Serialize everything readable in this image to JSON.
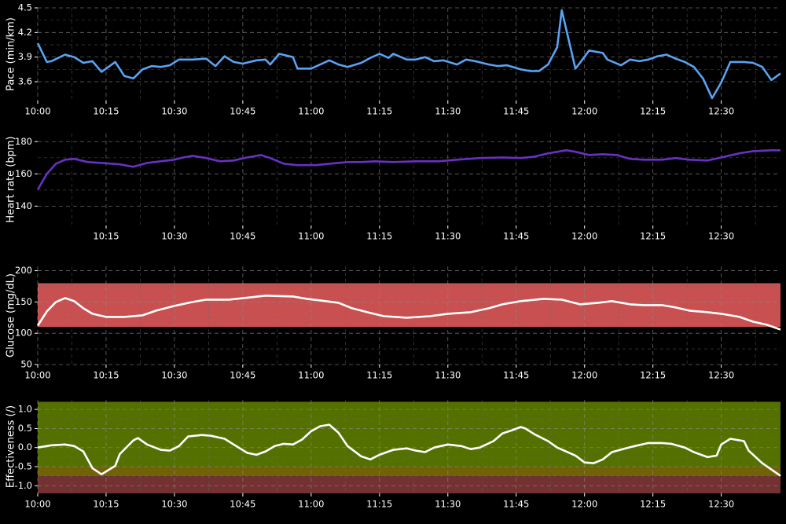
{
  "chart_data": [
    {
      "type": "line",
      "ylabel": "Pace (min/km)",
      "color": "#5aa2f2",
      "grid": true,
      "xlim": [
        "10:00",
        "12:43"
      ],
      "xticks": [
        "10:00",
        "10:15",
        "10:30",
        "10:45",
        "11:00",
        "11:15",
        "11:30",
        "11:45",
        "12:00",
        "12:15",
        "12:30"
      ],
      "ylim": [
        3.37,
        4.5
      ],
      "yticks": [
        3.6,
        3.9,
        4.2,
        4.5
      ],
      "x": [
        "10:00",
        "10:02",
        "10:03",
        "10:06",
        "10:08",
        "10:10",
        "10:12",
        "10:14",
        "10:17",
        "10:19",
        "10:21",
        "10:23",
        "10:25",
        "10:27",
        "10:29",
        "10:31",
        "10:34",
        "10:37",
        "10:39",
        "10:41",
        "10:43",
        "10:45",
        "10:48",
        "10:50",
        "10:51",
        "10:53",
        "10:56",
        "10:57",
        "11:00",
        "11:02",
        "11:04",
        "11:06",
        "11:08",
        "11:11",
        "11:13",
        "11:15",
        "11:17",
        "11:18",
        "11:21",
        "11:23",
        "11:25",
        "11:27",
        "11:29",
        "11:32",
        "11:34",
        "11:36",
        "11:39",
        "11:41",
        "11:43",
        "11:46",
        "11:48",
        "11:50",
        "11:52",
        "11:54",
        "11:55",
        "11:58",
        "11:59",
        "12:01",
        "12:04",
        "12:05",
        "12:08",
        "12:10",
        "12:12",
        "12:14",
        "12:16",
        "12:18",
        "12:20",
        "12:22",
        "12:24",
        "12:26",
        "12:28",
        "12:30",
        "12:32",
        "12:35",
        "12:37",
        "12:39",
        "12:41",
        "12:43"
      ],
      "values": [
        4.07,
        3.84,
        3.85,
        3.93,
        3.9,
        3.83,
        3.85,
        3.72,
        3.84,
        3.67,
        3.64,
        3.75,
        3.79,
        3.78,
        3.8,
        3.87,
        3.87,
        3.88,
        3.79,
        3.91,
        3.84,
        3.82,
        3.86,
        3.87,
        3.81,
        3.94,
        3.9,
        3.76,
        3.76,
        3.81,
        3.86,
        3.81,
        3.78,
        3.83,
        3.89,
        3.94,
        3.89,
        3.94,
        3.87,
        3.87,
        3.9,
        3.85,
        3.86,
        3.81,
        3.87,
        3.85,
        3.81,
        3.79,
        3.8,
        3.75,
        3.73,
        3.73,
        3.81,
        4.02,
        4.47,
        3.76,
        3.83,
        3.98,
        3.95,
        3.87,
        3.8,
        3.87,
        3.85,
        3.87,
        3.91,
        3.93,
        3.88,
        3.84,
        3.78,
        3.64,
        3.4,
        3.59,
        3.84,
        3.84,
        3.83,
        3.78,
        3.62,
        3.7
      ]
    },
    {
      "type": "line",
      "ylabel": "Heart rate (bpm)",
      "color": "#6a30c4",
      "grid": true,
      "xlim": [
        "10:00",
        "12:43"
      ],
      "xticks": [
        "10:15",
        "10:30",
        "10:45",
        "11:00",
        "11:15",
        "11:30",
        "11:45",
        "12:00",
        "12:15",
        "12:30"
      ],
      "ylim": [
        128,
        185
      ],
      "yticks": [
        140,
        160,
        180
      ],
      "x": [
        "10:00",
        "10:02",
        "10:04",
        "10:06",
        "10:08",
        "10:11",
        "10:14",
        "10:18",
        "10:21",
        "10:24",
        "10:27",
        "10:30",
        "10:32",
        "10:34",
        "10:37",
        "10:40",
        "10:43",
        "10:46",
        "10:49",
        "10:51",
        "10:54",
        "10:57",
        "11:01",
        "11:04",
        "11:08",
        "11:11",
        "11:14",
        "11:18",
        "11:23",
        "11:28",
        "11:32",
        "11:37",
        "11:42",
        "11:46",
        "11:49",
        "11:52",
        "11:56",
        "11:58",
        "12:01",
        "12:04",
        "12:07",
        "12:10",
        "12:13",
        "12:17",
        "12:20",
        "12:23",
        "12:27",
        "12:30",
        "12:34",
        "12:37",
        "12:41",
        "12:43"
      ],
      "values": [
        150.2,
        160,
        166.3,
        168.8,
        169.3,
        167.3,
        166.8,
        165.9,
        164.4,
        166.8,
        167.8,
        168.8,
        170.2,
        171.2,
        169.8,
        167.8,
        168.3,
        170.2,
        171.7,
        169.8,
        166.3,
        165.4,
        165.4,
        166.3,
        167.3,
        167.3,
        167.8,
        167.3,
        167.8,
        167.8,
        168.8,
        169.8,
        170.2,
        169.8,
        170.7,
        172.7,
        174.6,
        173.7,
        171.7,
        172.2,
        171.7,
        169.3,
        168.8,
        168.8,
        169.8,
        168.8,
        168.3,
        170.2,
        172.7,
        174.1,
        174.6,
        174.6
      ]
    },
    {
      "type": "line",
      "ylabel": "Glucose (mg/dL)",
      "color": "#ffffff",
      "grid": true,
      "bands": [
        {
          "from": 110,
          "to": 180,
          "color": "#d95757"
        }
      ],
      "xlim": [
        "10:00",
        "12:43"
      ],
      "xticks": [
        "10:00",
        "10:15",
        "10:30",
        "10:45",
        "11:00",
        "11:15",
        "11:30",
        "11:45",
        "12:00",
        "12:15",
        "12:30"
      ],
      "ylim": [
        50,
        207
      ],
      "yticks": [
        50,
        100,
        150,
        200
      ],
      "x": [
        "10:00",
        "10:02",
        "10:04",
        "10:06",
        "10:08",
        "10:10",
        "10:12",
        "10:15",
        "10:19",
        "10:23",
        "10:26",
        "10:30",
        "10:34",
        "10:37",
        "10:42",
        "10:47",
        "10:50",
        "10:56",
        "10:59",
        "11:02",
        "11:06",
        "11:09",
        "11:13",
        "11:16",
        "11:21",
        "11:26",
        "11:30",
        "11:35",
        "11:39",
        "11:42",
        "11:46",
        "11:51",
        "11:55",
        "11:59",
        "12:03",
        "12:06",
        "12:10",
        "12:13",
        "12:17",
        "12:20",
        "12:23",
        "12:27",
        "12:30",
        "12:34",
        "12:37",
        "12:40",
        "12:43"
      ],
      "values": [
        112.2,
        134.9,
        150,
        156.3,
        151.3,
        139.9,
        131.1,
        126.1,
        126.1,
        128.6,
        136.1,
        143.7,
        150,
        153.8,
        153.8,
        157.6,
        160.1,
        158.8,
        155,
        152.5,
        148.7,
        139.9,
        132.4,
        127.3,
        124.8,
        127.3,
        131.1,
        133.6,
        139.9,
        146.2,
        151.3,
        155,
        153.8,
        146.2,
        148.7,
        151.3,
        146.2,
        145,
        145,
        141.2,
        136.1,
        133.6,
        131.1,
        126.1,
        118.5,
        113.5,
        105.9
      ]
    },
    {
      "type": "line",
      "ylabel": "Effectiveness (/)",
      "color": "#ffffff",
      "grid": true,
      "bands": [
        {
          "from": -0.5,
          "to": 1.2,
          "color": "#5b7b00"
        },
        {
          "from": -0.75,
          "to": -0.5,
          "color": "#7c6a08"
        },
        {
          "from": -1.2,
          "to": -0.75,
          "color": "#7d3535"
        }
      ],
      "xlim": [
        "10:00",
        "12:43"
      ],
      "xticks": [
        "10:00",
        "10:15",
        "10:30",
        "10:45",
        "11:00",
        "11:15",
        "11:30",
        "11:45",
        "12:00",
        "12:15",
        "12:30"
      ],
      "ylim": [
        -1.2,
        1.25
      ],
      "yticks": [
        {
          "value": -1,
          "label": "-1.0"
        },
        -0.5,
        {
          "value": 0,
          "label": "0.0"
        },
        0.5,
        {
          "value": 1,
          "label": "1.0"
        }
      ],
      "x": [
        "10:00",
        "10:03",
        "10:06",
        "10:08",
        "10:10",
        "10:12",
        "10:14",
        "10:17",
        "10:18",
        "10:21",
        "10:22",
        "10:24",
        "10:27",
        "10:29",
        "10:31",
        "10:33",
        "10:36",
        "10:38",
        "10:41",
        "10:43",
        "10:46",
        "10:48",
        "10:50",
        "10:52",
        "10:54",
        "10:56",
        "10:58",
        "11:00",
        "11:02",
        "11:04",
        "11:06",
        "11:08",
        "11:11",
        "11:13",
        "11:15",
        "11:18",
        "11:21",
        "11:23",
        "11:25",
        "11:27",
        "11:30",
        "11:33",
        "11:35",
        "11:37",
        "11:40",
        "11:42",
        "11:44",
        "11:46",
        "11:47",
        "11:49",
        "11:52",
        "11:54",
        "11:58",
        "12:00",
        "12:02",
        "12:04",
        "12:06",
        "12:09",
        "12:11",
        "12:14",
        "12:17",
        "12:19",
        "12:22",
        "12:24",
        "12:27",
        "12:29",
        "12:30",
        "12:32",
        "12:35",
        "12:36",
        "12:39",
        "12:43"
      ],
      "values": [
        0,
        0.06,
        0.08,
        0.04,
        -0.1,
        -0.54,
        -0.7,
        -0.48,
        -0.17,
        0.19,
        0.25,
        0.08,
        -0.06,
        -0.08,
        0.04,
        0.29,
        0.33,
        0.31,
        0.23,
        0.08,
        -0.14,
        -0.19,
        -0.1,
        0.04,
        0.1,
        0.08,
        0.21,
        0.43,
        0.56,
        0.6,
        0.39,
        0.04,
        -0.23,
        -0.31,
        -0.19,
        -0.06,
        -0.02,
        -0.08,
        -0.12,
        0,
        0.08,
        0.04,
        -0.04,
        0,
        0.17,
        0.37,
        0.45,
        0.54,
        0.5,
        0.35,
        0.17,
        0,
        -0.21,
        -0.39,
        -0.41,
        -0.31,
        -0.12,
        -0.02,
        0.04,
        0.12,
        0.12,
        0.1,
        0,
        -0.12,
        -0.25,
        -0.21,
        0.08,
        0.23,
        0.17,
        -0.08,
        -0.41,
        -0.74
      ]
    }
  ]
}
